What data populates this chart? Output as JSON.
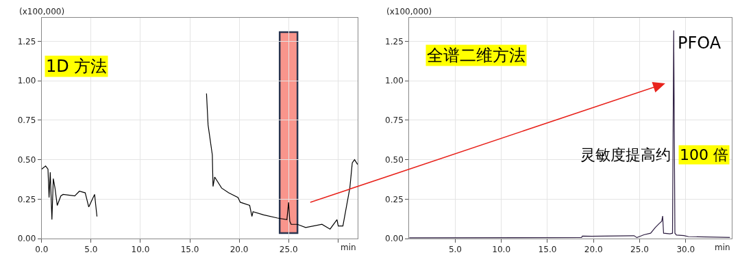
{
  "chart_data": [
    {
      "type": "line",
      "ylabel": "(x100,000)",
      "xlabel": "min",
      "annotations": [
        "1D 方法"
      ],
      "x": [
        0,
        0.4,
        0.64,
        0.75,
        0.87,
        1.04,
        1.18,
        1.35,
        1.58,
        1.94,
        2.17,
        3.35,
        3.82,
        4.41,
        4.77,
        5.36,
        5.6,
        5.67,
        5.68,
        16.53,
        16.69,
        16.85,
        17.28,
        17.35,
        17.52,
        18.22,
        18.93,
        19.88,
        20.11,
        21.06,
        21.29,
        21.4,
        22.47,
        23.88,
        24.83,
        25.0,
        25.12,
        25.26,
        25.9,
        26.73,
        28.38,
        29.2,
        29.9,
        30.03,
        30.5,
        31.2,
        31.45,
        31.68,
        31.99
      ],
      "series": [
        {
          "color": "#000000",
          "values": [
            0.44,
            0.46,
            0.44,
            0.26,
            0.42,
            0.12,
            0.38,
            0.32,
            0.21,
            0.27,
            0.28,
            0.27,
            0.3,
            0.29,
            0.2,
            0.28,
            0.14,
            null,
            null,
            null,
            0.92,
            0.72,
            0.53,
            0.33,
            0.39,
            0.32,
            0.29,
            0.26,
            0.23,
            0.21,
            0.14,
            0.17,
            0.15,
            0.13,
            0.12,
            0.23,
            0.11,
            0.09,
            0.09,
            0.07,
            0.09,
            0.06,
            0.12,
            0.08,
            0.08,
            0.32,
            0.48,
            0.5,
            0.47
          ]
        }
      ],
      "bands": [
        {
          "axis": "x",
          "from": 24.1,
          "to": 25.9,
          "color": "#f9958c"
        }
      ],
      "xlim": [
        0,
        32
      ],
      "ylim": [
        0,
        1.4
      ],
      "xticks": [
        {
          "value": 0,
          "label": "0.0"
        },
        {
          "value": 5,
          "label": "5.0"
        },
        {
          "value": 10,
          "label": "10.0"
        },
        {
          "value": 15,
          "label": "15.0"
        },
        {
          "value": 20,
          "label": "20.0"
        },
        {
          "value": 25,
          "label": "25.0"
        },
        {
          "value": 30,
          "label": null
        }
      ],
      "yticks": [
        {
          "value": 0,
          "label": "0.00"
        },
        {
          "value": 0.25,
          "label": "0.25"
        },
        {
          "value": 0.5,
          "label": "0.50"
        },
        {
          "value": 0.75,
          "label": "0.75"
        },
        {
          "value": 1.0,
          "label": "1.00"
        },
        {
          "value": 1.25,
          "label": "1.25"
        }
      ],
      "grid": true
    },
    {
      "type": "line",
      "ylabel": "(x100,000)",
      "xlabel": "min",
      "annotations": [
        "全谱二维方法",
        {
          "text": "PFOA",
          "x": 28.7,
          "y": 1.32
        },
        "灵敏度提高约",
        "100 倍"
      ],
      "x": [
        0,
        18.7,
        18.8,
        19.8,
        24.4,
        24.7,
        24.95,
        25.46,
        26.2,
        26.7,
        27.1,
        27.4,
        27.5,
        27.6,
        28.3,
        28.57,
        28.7,
        28.83,
        29.0,
        29.8,
        30.3,
        34.8
      ],
      "series": [
        {
          "color": "#2b1b3f",
          "values": [
            0.005,
            0.007,
            0.016,
            0.015,
            0.018,
            0.006,
            0.012,
            0.024,
            0.034,
            0.07,
            0.094,
            0.11,
            0.143,
            0.034,
            0.03,
            0.034,
            1.32,
            0.034,
            0.022,
            0.019,
            0.012,
            0.007
          ]
        }
      ],
      "xlim": [
        0,
        35
      ],
      "ylim": [
        0,
        1.4
      ],
      "xticks": [
        {
          "value": 5,
          "label": "5.0"
        },
        {
          "value": 10,
          "label": "10.0"
        },
        {
          "value": 15,
          "label": "15.0"
        },
        {
          "value": 20,
          "label": "20.0"
        },
        {
          "value": 25,
          "label": "25.0"
        },
        {
          "value": 30,
          "label": "30.0"
        }
      ],
      "yticks": [
        {
          "value": 0,
          "label": "0.00"
        },
        {
          "value": 0.25,
          "label": "0.25"
        },
        {
          "value": 0.5,
          "label": "0.50"
        },
        {
          "value": 0.75,
          "label": "0.75"
        },
        {
          "value": 1.0,
          "label": "1.00"
        },
        {
          "value": 1.25,
          "label": "1.25"
        }
      ],
      "grid": true
    }
  ]
}
